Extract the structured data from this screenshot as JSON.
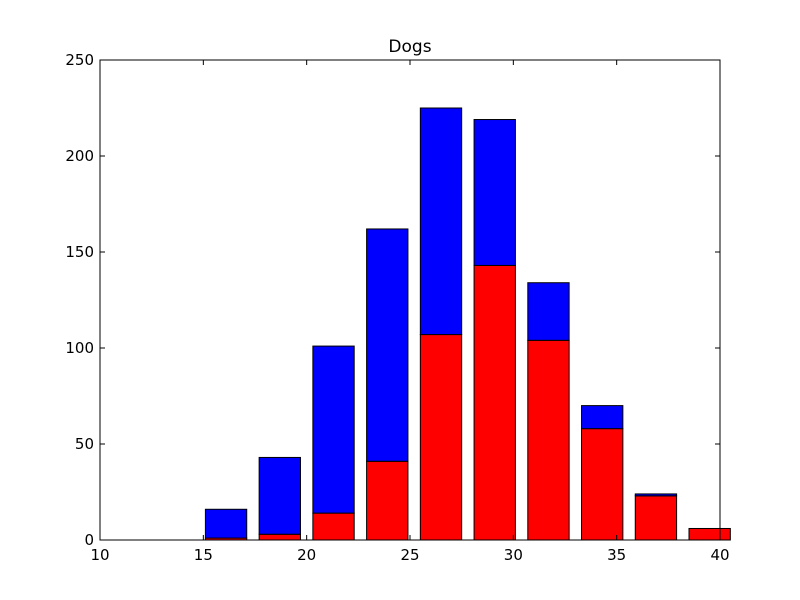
{
  "chart_data": {
    "type": "bar",
    "stacked": true,
    "title": "Dogs",
    "xlabel": "",
    "ylabel": "",
    "xlim": [
      10,
      40
    ],
    "ylim": [
      0,
      250
    ],
    "xticks": [
      10,
      15,
      20,
      25,
      30,
      35,
      40
    ],
    "yticks": [
      0,
      50,
      100,
      150,
      200,
      250
    ],
    "grid": false,
    "legend": "none",
    "bar_width": 2.0,
    "x": [
      15.1,
      17.7,
      20.3,
      22.9,
      25.5,
      28.1,
      30.7,
      33.3,
      35.9,
      38.5
    ],
    "series": [
      {
        "color": "#ff0000",
        "values": [
          1,
          3,
          14,
          41,
          107,
          143,
          104,
          58,
          23,
          6
        ]
      },
      {
        "color": "#0000ff",
        "values": [
          15,
          40,
          87,
          121,
          118,
          76,
          30,
          12,
          1,
          0
        ]
      }
    ]
  }
}
